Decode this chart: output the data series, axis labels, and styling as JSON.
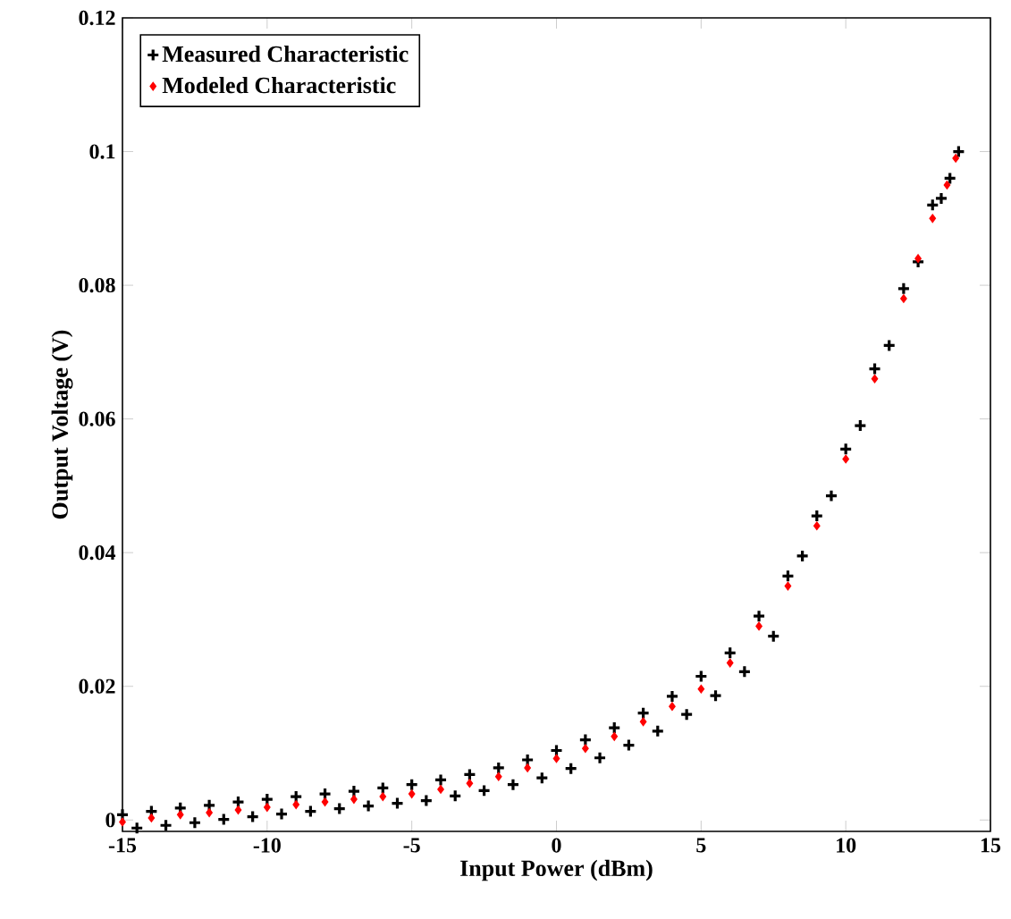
{
  "chart_data": {
    "type": "scatter",
    "xlabel": "Input Power (dBm)",
    "ylabel": "Output Voltage (V)",
    "xlim": [
      -15,
      15
    ],
    "ylim": [
      -0.0017,
      0.12
    ],
    "xticks": [
      -15,
      -10,
      -5,
      0,
      5,
      10,
      15
    ],
    "yticks": [
      0,
      0.02,
      0.04,
      0.06,
      0.08,
      0.1,
      0.12
    ],
    "legend": "top left",
    "grid": false,
    "series": [
      {
        "name": "Measured Characteristic",
        "color": "#000000",
        "marker": "cross",
        "x": [
          -15,
          -14.5,
          -14,
          -13.5,
          -13,
          -12.5,
          -12,
          -11.5,
          -11,
          -10.5,
          -10,
          -9.5,
          -9,
          -8.5,
          -8,
          -7.5,
          -7,
          -6.5,
          -6,
          -5.5,
          -5,
          -4.5,
          -4,
          -3.5,
          -3,
          -2.5,
          -2,
          -1.5,
          -1,
          -0.5,
          0,
          0.5,
          1,
          1.5,
          2,
          2.5,
          3,
          3.5,
          4,
          4.5,
          5,
          5.5,
          6,
          6.5,
          7,
          7.5,
          8,
          8.5,
          9,
          9.5,
          10,
          10.5,
          11,
          11.5,
          12,
          12.5,
          13,
          13.3,
          13.6,
          13.9
        ],
        "values": [
          0.0008,
          -0.0012,
          0.0013,
          -0.0008,
          0.0018,
          -0.0004,
          0.0022,
          0.0001,
          0.0027,
          0.0005,
          0.0031,
          0.0009,
          0.0035,
          0.0013,
          0.0039,
          0.0017,
          0.0043,
          0.0021,
          0.0048,
          0.0025,
          0.0053,
          0.0029,
          0.006,
          0.0036,
          0.0068,
          0.0044,
          0.0078,
          0.0053,
          0.009,
          0.0063,
          0.0104,
          0.0077,
          0.012,
          0.0093,
          0.0138,
          0.0112,
          0.016,
          0.0133,
          0.0185,
          0.0158,
          0.0215,
          0.0186,
          0.025,
          0.0222,
          0.0305,
          0.0275,
          0.0365,
          0.0395,
          0.0455,
          0.0485,
          0.0555,
          0.059,
          0.0675,
          0.071,
          0.0795,
          0.0835,
          0.092,
          0.093,
          0.096,
          0.1
        ]
      },
      {
        "name": "Modeled Characteristic",
        "color": "#ff0000",
        "marker": "diamond",
        "x": [
          -15,
          -14,
          -13,
          -12,
          -11,
          -10,
          -9,
          -8,
          -7,
          -6,
          -5,
          -4,
          -3,
          -2,
          -1,
          0,
          1,
          2,
          3,
          4,
          5,
          6,
          7,
          8,
          9,
          10,
          11,
          12,
          12.5,
          13,
          13.5,
          13.8
        ],
        "values": [
          -0.0003,
          0.0003,
          0.0008,
          0.0011,
          0.0015,
          0.0019,
          0.0023,
          0.0027,
          0.0031,
          0.0035,
          0.0039,
          0.0046,
          0.0055,
          0.0065,
          0.0078,
          0.0092,
          0.0107,
          0.0125,
          0.0147,
          0.017,
          0.0196,
          0.0235,
          0.029,
          0.035,
          0.044,
          0.054,
          0.066,
          0.078,
          0.084,
          0.09,
          0.095,
          0.099
        ]
      }
    ]
  }
}
